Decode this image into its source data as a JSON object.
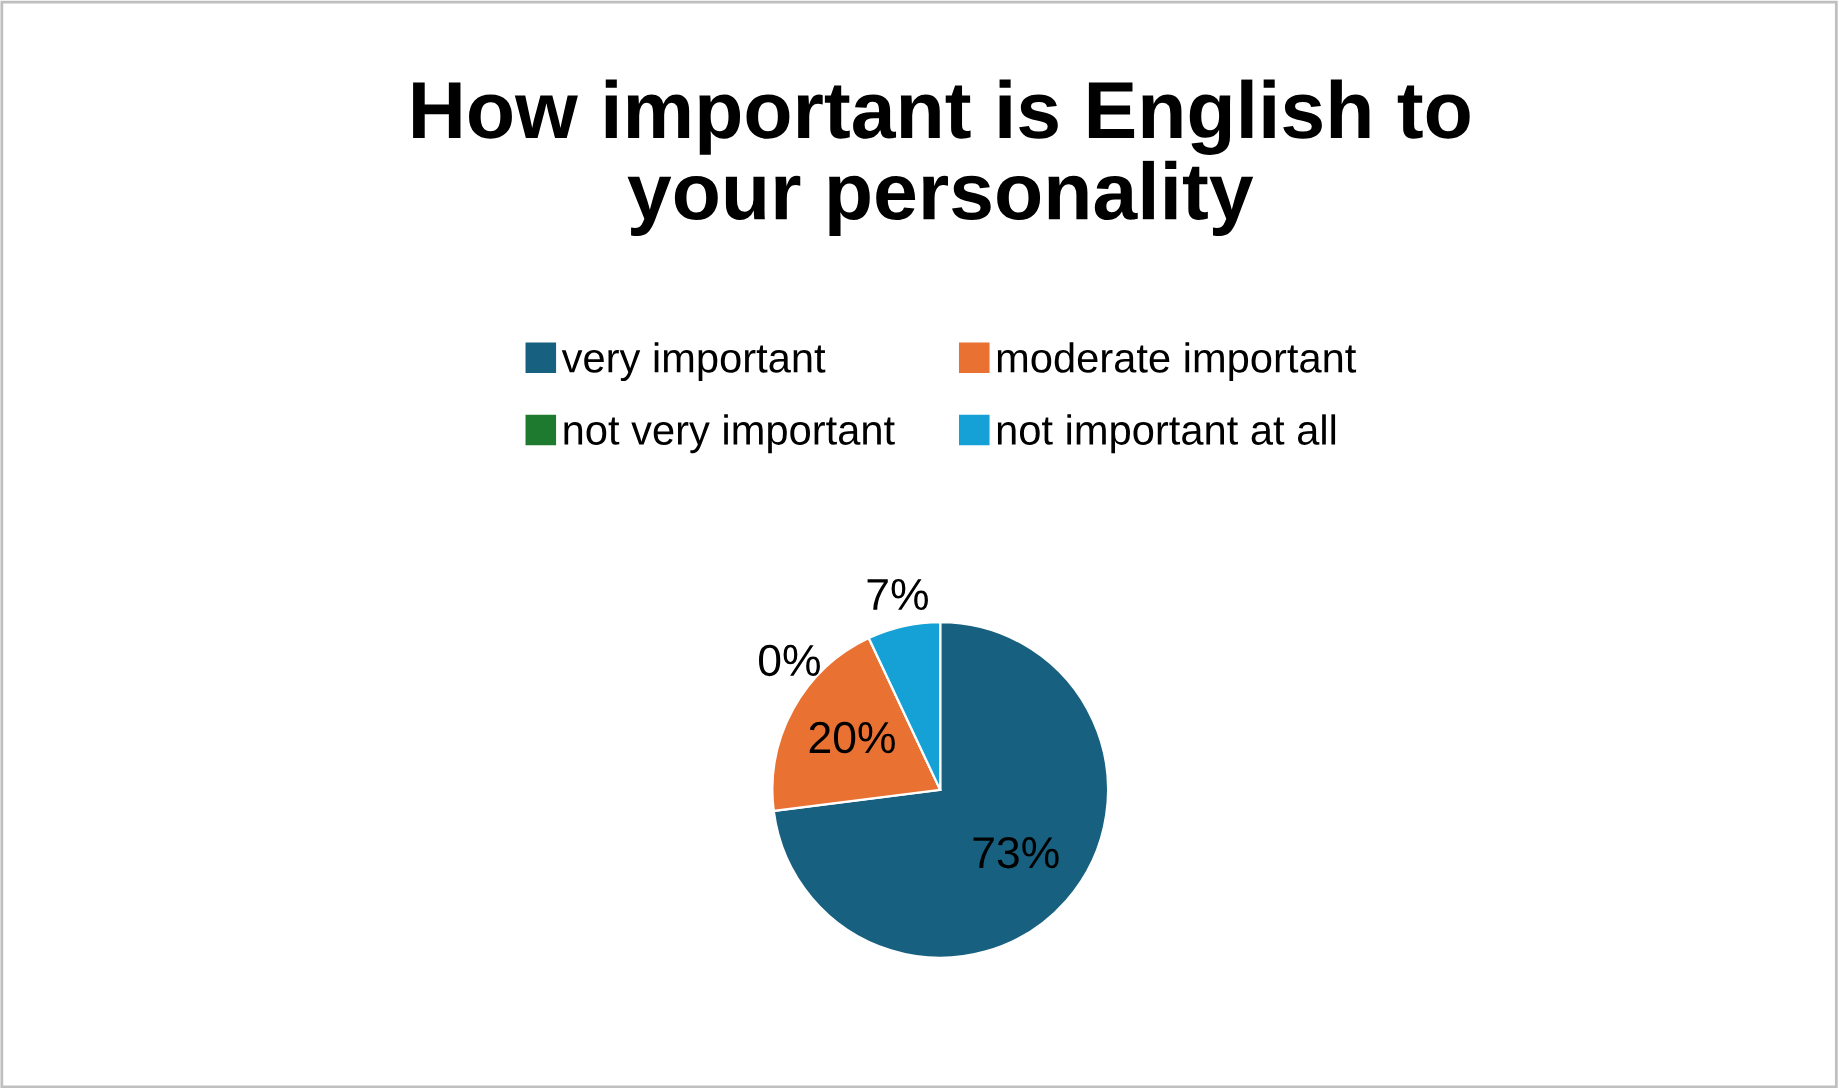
{
  "chart_data": {
    "type": "pie",
    "title": "How important is English to\nyour personality",
    "categories": [
      "very important",
      "moderate important",
      "not very important",
      "not important at all"
    ],
    "values": [
      73,
      20,
      0,
      7
    ],
    "colors": [
      "#17607f",
      "#e97132",
      "#1e7a2e",
      "#15a0d6"
    ],
    "value_labels": [
      "73%",
      "20%",
      "0%",
      "7%"
    ],
    "legend": "top"
  }
}
